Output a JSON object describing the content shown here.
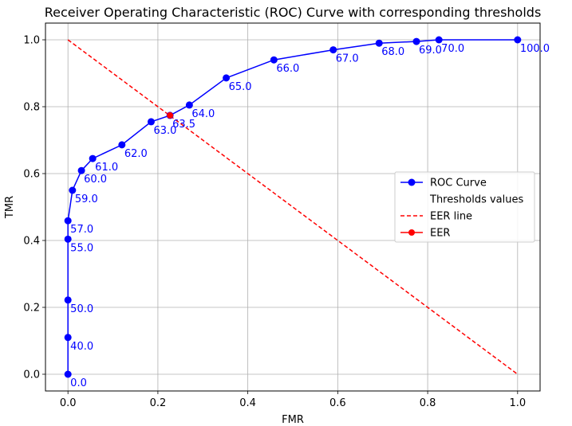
{
  "chart_data": {
    "type": "line",
    "title": "Receiver Operating Characteristic (ROC) Curve with corresponding thresholds",
    "xlabel": "FMR",
    "ylabel": "TMR",
    "xlim": [
      -0.05,
      1.05
    ],
    "ylim": [
      -0.05,
      1.05
    ],
    "xticks": [
      0.0,
      0.2,
      0.4,
      0.6,
      0.8,
      1.0
    ],
    "yticks": [
      0.0,
      0.2,
      0.4,
      0.6,
      0.8,
      1.0
    ],
    "xtick_labels": [
      "0.0",
      "0.2",
      "0.4",
      "0.6",
      "0.8",
      "1.0"
    ],
    "ytick_labels": [
      "0.0",
      "0.2",
      "0.4",
      "0.6",
      "0.8",
      "1.0"
    ],
    "grid": true,
    "legend_position": "center-right",
    "series": [
      {
        "name": "ROC Curve",
        "color": "#0000ff",
        "marker": "circle",
        "x": [
          0.0,
          0.0,
          0.0,
          0.0,
          0.0,
          0.01,
          0.03,
          0.055,
          0.12,
          0.185,
          0.227,
          0.27,
          0.352,
          0.458,
          0.59,
          0.692,
          0.775,
          0.825,
          1.0
        ],
        "y": [
          0.0,
          0.11,
          0.222,
          0.404,
          0.459,
          0.55,
          0.609,
          0.645,
          0.686,
          0.755,
          0.774,
          0.805,
          0.886,
          0.94,
          0.97,
          0.99,
          0.995,
          1.0,
          1.0
        ]
      },
      {
        "name": "EER line",
        "color": "#ff0000",
        "style": "dashed",
        "x": [
          0.0,
          1.0
        ],
        "y": [
          1.0,
          0.0
        ]
      },
      {
        "name": "EER",
        "color": "#ff0000",
        "marker": "circle",
        "x": [
          0.227
        ],
        "y": [
          0.774
        ]
      }
    ],
    "thresholds_label": "Thresholds values",
    "threshold_annotations": [
      {
        "text": "0.0",
        "x": 0.0,
        "y": 0.0
      },
      {
        "text": "40.0",
        "x": 0.0,
        "y": 0.11
      },
      {
        "text": "50.0",
        "x": 0.0,
        "y": 0.222
      },
      {
        "text": "55.0",
        "x": 0.0,
        "y": 0.404
      },
      {
        "text": "57.0",
        "x": 0.0,
        "y": 0.459
      },
      {
        "text": "59.0",
        "x": 0.01,
        "y": 0.55
      },
      {
        "text": "60.0",
        "x": 0.03,
        "y": 0.609
      },
      {
        "text": "61.0",
        "x": 0.055,
        "y": 0.645
      },
      {
        "text": "62.0",
        "x": 0.12,
        "y": 0.686
      },
      {
        "text": "63.0",
        "x": 0.185,
        "y": 0.755
      },
      {
        "text": "63.5",
        "x": 0.227,
        "y": 0.774
      },
      {
        "text": "64.0",
        "x": 0.27,
        "y": 0.805
      },
      {
        "text": "65.0",
        "x": 0.352,
        "y": 0.886
      },
      {
        "text": "66.0",
        "x": 0.458,
        "y": 0.94
      },
      {
        "text": "67.0",
        "x": 0.59,
        "y": 0.97
      },
      {
        "text": "68.0",
        "x": 0.692,
        "y": 0.99
      },
      {
        "text": "69.0",
        "x": 0.775,
        "y": 0.995
      },
      {
        "text": "70.0",
        "x": 0.825,
        "y": 1.0
      },
      {
        "text": "100.0",
        "x": 1.0,
        "y": 1.0
      }
    ]
  }
}
